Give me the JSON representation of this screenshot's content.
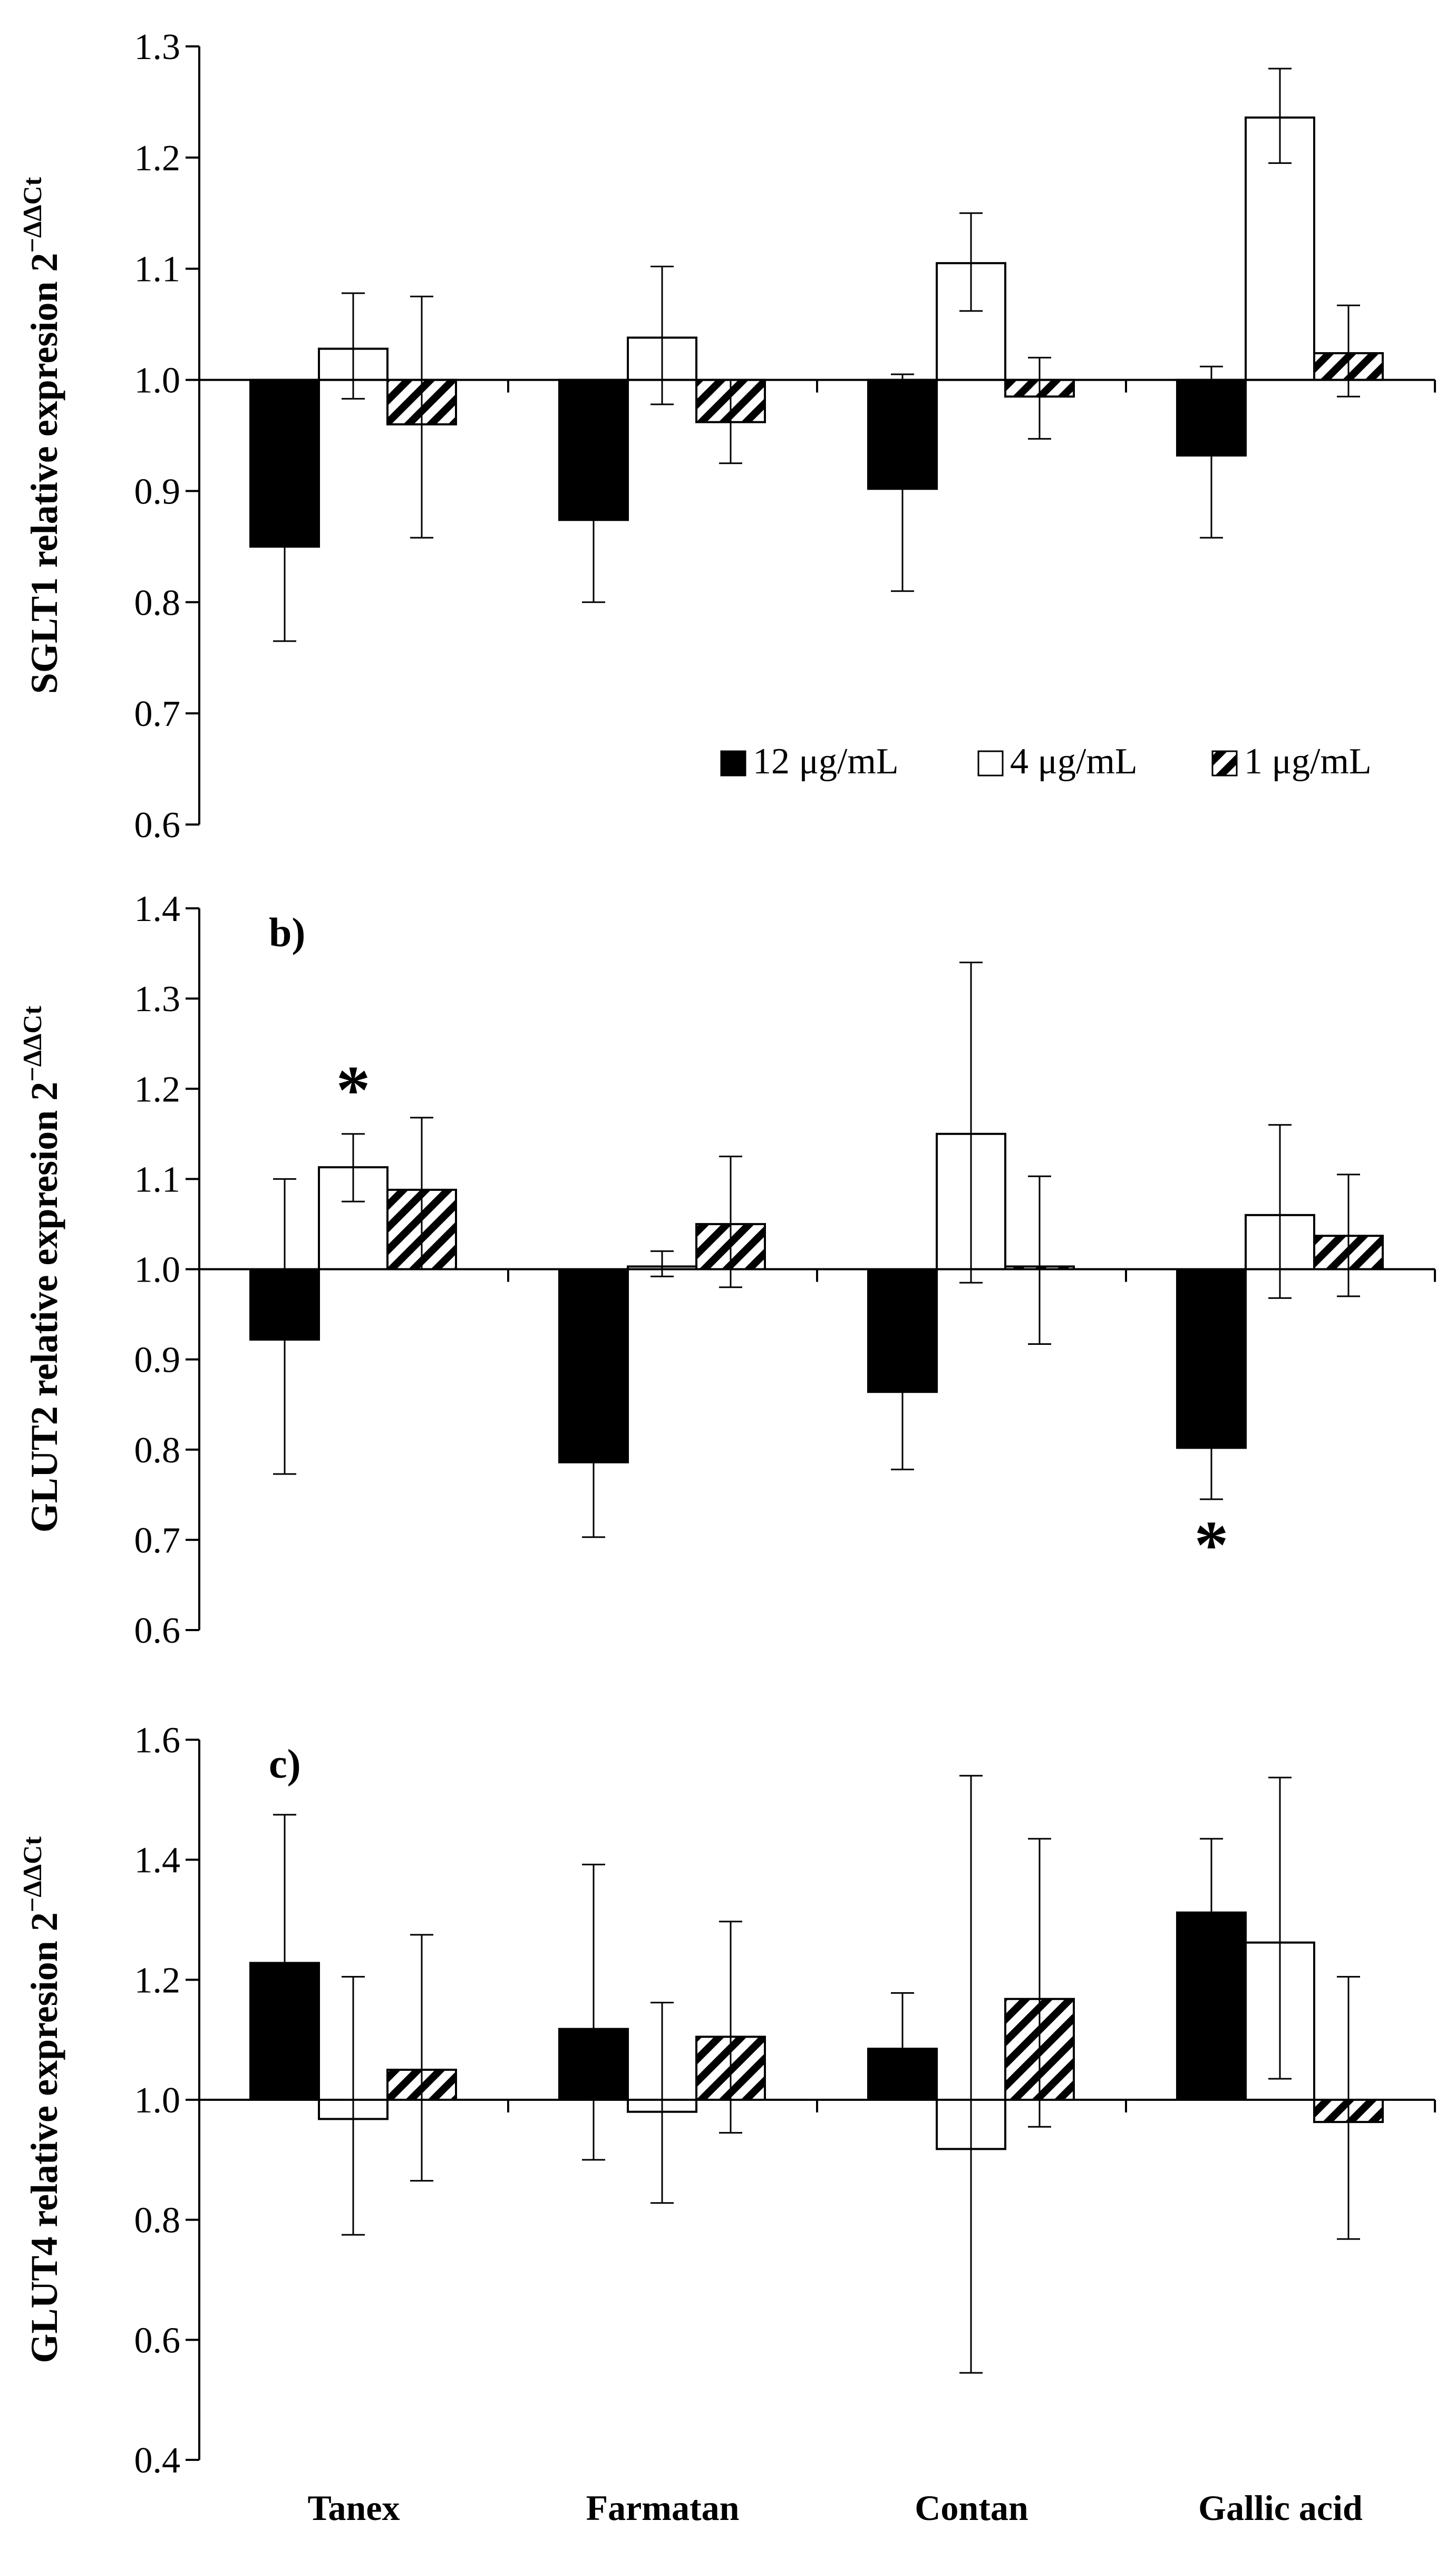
{
  "chart_data": [
    {
      "type": "bar",
      "panel_label": "",
      "categories": [
        "Tanex",
        "Farmatan",
        "Contan",
        "Gallic acid"
      ],
      "ylabel": "SGLT1 relative expresion 2",
      "ylabel_superscript": "−ΔΔCt",
      "ylim": [
        0.6,
        1.3
      ],
      "yticks": [
        0.6,
        0.7,
        0.8,
        0.9,
        1.0,
        1.1,
        1.2,
        1.3
      ],
      "tick_decimals": 1,
      "baseline": 1.0,
      "series": [
        {
          "name": "12 μg/mL",
          "values": [
            0.85,
            0.874,
            0.902,
            0.932
          ],
          "err_low": [
            0.765,
            0.8,
            0.81,
            0.858
          ],
          "err_high": [
            1.0,
            1.0,
            1.005,
            1.012
          ]
        },
        {
          "name": "4 μg/mL",
          "values": [
            1.028,
            1.038,
            1.105,
            1.236
          ],
          "err_low": [
            0.983,
            0.978,
            1.062,
            1.195
          ],
          "err_high": [
            1.078,
            1.102,
            1.15,
            1.28
          ]
        },
        {
          "name": "1 μg/mL",
          "values": [
            0.96,
            0.962,
            0.985,
            1.024
          ],
          "err_low": [
            0.858,
            0.925,
            0.947,
            0.985
          ],
          "err_high": [
            1.075,
            1.0,
            1.02,
            1.067
          ]
        }
      ],
      "significance": [],
      "legend": {
        "position": "bottom-right",
        "entries": [
          "12 μg/mL",
          "4 μg/mL",
          "1 μg/mL"
        ]
      }
    },
    {
      "type": "bar",
      "panel_label": "b)",
      "categories": [
        "Tanex",
        "Farmatan",
        "Contan",
        "Gallic acid"
      ],
      "ylabel": "GLUT2 relative expresion 2",
      "ylabel_superscript": "−ΔΔCt",
      "ylim": [
        0.6,
        1.4
      ],
      "yticks": [
        0.6,
        0.7,
        0.8,
        0.9,
        1.0,
        1.1,
        1.2,
        1.3,
        1.4
      ],
      "tick_decimals": 1,
      "baseline": 1.0,
      "series": [
        {
          "name": "12 μg/mL",
          "values": [
            0.922,
            0.786,
            0.864,
            0.802
          ],
          "err_low": [
            0.773,
            0.703,
            0.778,
            0.745
          ],
          "err_high": [
            1.1,
            1.0,
            1.0,
            1.0
          ]
        },
        {
          "name": "4 μg/mL",
          "values": [
            1.113,
            1.003,
            1.15,
            1.06
          ],
          "err_low": [
            1.075,
            0.992,
            0.985,
            0.968
          ],
          "err_high": [
            1.15,
            1.02,
            1.34,
            1.16
          ]
        },
        {
          "name": "1 μg/mL",
          "values": [
            1.088,
            1.05,
            1.003,
            1.037
          ],
          "err_low": [
            1.0,
            0.98,
            0.917,
            0.97
          ],
          "err_high": [
            1.168,
            1.125,
            1.103,
            1.105
          ]
        }
      ],
      "significance": [
        {
          "category_index": 0,
          "series_index": 1,
          "text": "*",
          "side": "above"
        },
        {
          "category_index": 3,
          "series_index": 0,
          "text": "*",
          "side": "below"
        }
      ]
    },
    {
      "type": "bar",
      "panel_label": "c)",
      "categories": [
        "Tanex",
        "Farmatan",
        "Contan",
        "Gallic acid"
      ],
      "ylabel": "GLUT4 relative expresion 2",
      "ylabel_superscript": "−ΔΔCt",
      "ylim": [
        0.4,
        1.6
      ],
      "yticks": [
        0.4,
        0.6,
        0.8,
        1.0,
        1.2,
        1.4,
        1.6
      ],
      "tick_decimals": 1,
      "baseline": 1.0,
      "series": [
        {
          "name": "12 μg/mL",
          "values": [
            1.228,
            1.118,
            1.085,
            1.312
          ],
          "err_low": [
            1.0,
            0.9,
            1.0,
            1.0
          ],
          "err_high": [
            1.475,
            1.392,
            1.178,
            1.435
          ]
        },
        {
          "name": "4 μg/mL",
          "values": [
            0.968,
            0.98,
            0.918,
            1.262
          ],
          "err_low": [
            0.775,
            0.828,
            0.545,
            1.035
          ],
          "err_high": [
            1.205,
            1.162,
            1.54,
            1.537
          ]
        },
        {
          "name": "1 μg/mL",
          "values": [
            1.05,
            1.105,
            1.168,
            0.963
          ],
          "err_low": [
            0.865,
            0.945,
            0.955,
            0.768
          ],
          "err_high": [
            1.275,
            1.297,
            1.435,
            1.205
          ]
        }
      ],
      "significance": []
    }
  ],
  "colors": {
    "series_12": "#000000",
    "series_4": "#ffffff",
    "series_1_hatch": "#000000",
    "axis": "#000000"
  }
}
